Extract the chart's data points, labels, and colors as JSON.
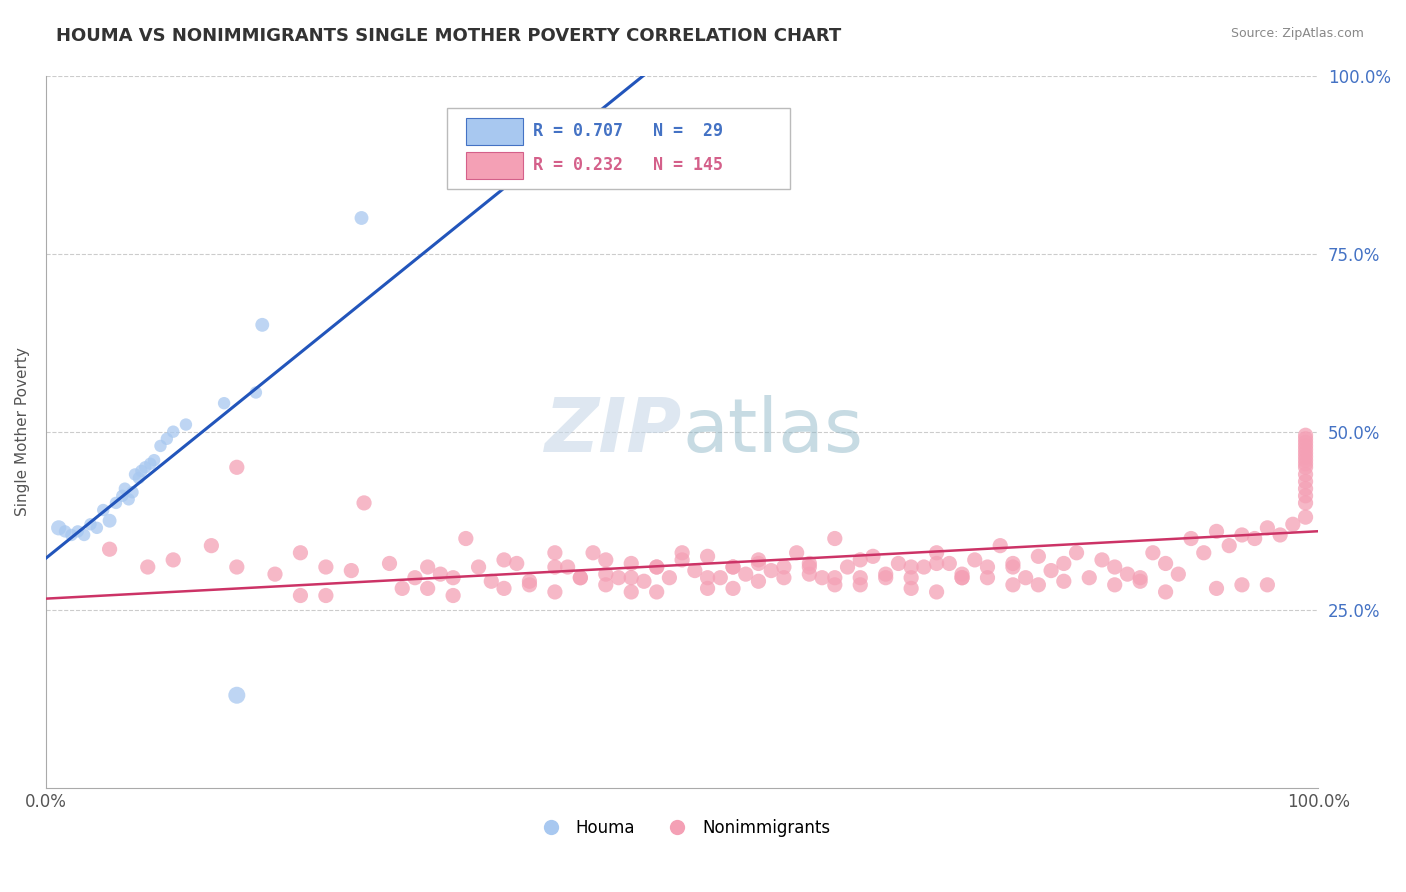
{
  "title": "HOUMA VS NONIMMIGRANTS SINGLE MOTHER POVERTY CORRELATION CHART",
  "source": "Source: ZipAtlas.com",
  "ylabel": "Single Mother Poverty",
  "houma_R": 0.707,
  "houma_N": 29,
  "nonimm_R": 0.232,
  "nonimm_N": 145,
  "houma_color": "#a8c8f0",
  "houma_edge_color": "#4472c4",
  "nonimm_color": "#f4a0b5",
  "nonimm_edge_color": "#d4608a",
  "houma_line_color": "#2255bb",
  "nonimm_line_color": "#cc3366",
  "background_color": "#ffffff",
  "grid_color": "#cccccc",
  "xlim": [
    0,
    1
  ],
  "ylim": [
    0,
    1
  ],
  "houma_x": [
    0.01,
    0.015,
    0.02,
    0.025,
    0.03,
    0.035,
    0.04,
    0.045,
    0.05,
    0.055,
    0.06,
    0.062,
    0.065,
    0.068,
    0.07,
    0.073,
    0.075,
    0.078,
    0.082,
    0.085,
    0.09,
    0.095,
    0.1,
    0.11,
    0.14,
    0.165,
    0.17,
    0.248,
    0.15
  ],
  "houma_y": [
    0.365,
    0.36,
    0.355,
    0.36,
    0.355,
    0.37,
    0.365,
    0.39,
    0.375,
    0.4,
    0.41,
    0.42,
    0.405,
    0.415,
    0.44,
    0.435,
    0.445,
    0.45,
    0.455,
    0.46,
    0.48,
    0.49,
    0.5,
    0.51,
    0.54,
    0.555,
    0.65,
    0.8,
    0.13
  ],
  "houma_sizes": [
    120,
    80,
    80,
    80,
    80,
    80,
    80,
    80,
    100,
    80,
    80,
    80,
    80,
    80,
    80,
    80,
    80,
    80,
    80,
    80,
    80,
    80,
    80,
    80,
    80,
    80,
    100,
    100,
    150
  ],
  "nonimm_x": [
    0.05,
    0.08,
    0.1,
    0.13,
    0.15,
    0.18,
    0.2,
    0.22,
    0.24,
    0.27,
    0.29,
    0.3,
    0.31,
    0.32,
    0.33,
    0.34,
    0.35,
    0.36,
    0.37,
    0.38,
    0.4,
    0.41,
    0.42,
    0.43,
    0.44,
    0.45,
    0.46,
    0.47,
    0.48,
    0.49,
    0.5,
    0.51,
    0.52,
    0.53,
    0.54,
    0.55,
    0.56,
    0.57,
    0.58,
    0.59,
    0.6,
    0.61,
    0.62,
    0.63,
    0.64,
    0.65,
    0.66,
    0.67,
    0.68,
    0.69,
    0.7,
    0.71,
    0.72,
    0.73,
    0.74,
    0.75,
    0.76,
    0.77,
    0.78,
    0.79,
    0.8,
    0.81,
    0.82,
    0.83,
    0.84,
    0.85,
    0.86,
    0.87,
    0.88,
    0.89,
    0.9,
    0.91,
    0.92,
    0.93,
    0.94,
    0.95,
    0.96,
    0.97,
    0.98,
    0.99,
    0.2,
    0.25,
    0.28,
    0.32,
    0.36,
    0.4,
    0.44,
    0.48,
    0.52,
    0.56,
    0.6,
    0.64,
    0.68,
    0.72,
    0.76,
    0.8,
    0.84,
    0.88,
    0.92,
    0.96,
    0.15,
    0.22,
    0.3,
    0.38,
    0.46,
    0.54,
    0.62,
    0.7,
    0.78,
    0.86,
    0.94,
    0.99,
    0.99,
    0.99,
    0.99,
    0.99,
    0.99,
    0.99,
    0.99,
    0.99,
    0.99,
    0.99,
    0.99,
    0.99,
    0.99,
    0.99,
    0.4,
    0.42,
    0.44,
    0.46,
    0.48,
    0.5,
    0.52,
    0.54,
    0.56,
    0.58,
    0.6,
    0.62,
    0.64,
    0.66,
    0.68,
    0.7,
    0.72,
    0.74,
    0.76
  ],
  "nonimm_y": [
    0.335,
    0.31,
    0.32,
    0.34,
    0.31,
    0.3,
    0.33,
    0.31,
    0.305,
    0.315,
    0.295,
    0.31,
    0.3,
    0.295,
    0.35,
    0.31,
    0.29,
    0.32,
    0.315,
    0.29,
    0.33,
    0.31,
    0.295,
    0.33,
    0.3,
    0.295,
    0.315,
    0.29,
    0.31,
    0.295,
    0.32,
    0.305,
    0.325,
    0.295,
    0.31,
    0.3,
    0.32,
    0.305,
    0.31,
    0.33,
    0.315,
    0.295,
    0.35,
    0.31,
    0.295,
    0.325,
    0.3,
    0.315,
    0.295,
    0.31,
    0.33,
    0.315,
    0.3,
    0.32,
    0.295,
    0.34,
    0.31,
    0.295,
    0.325,
    0.305,
    0.315,
    0.33,
    0.295,
    0.32,
    0.31,
    0.3,
    0.295,
    0.33,
    0.315,
    0.3,
    0.35,
    0.33,
    0.36,
    0.34,
    0.355,
    0.35,
    0.365,
    0.355,
    0.37,
    0.38,
    0.27,
    0.4,
    0.28,
    0.27,
    0.28,
    0.275,
    0.285,
    0.275,
    0.28,
    0.29,
    0.3,
    0.285,
    0.28,
    0.295,
    0.285,
    0.29,
    0.285,
    0.275,
    0.28,
    0.285,
    0.45,
    0.27,
    0.28,
    0.285,
    0.275,
    0.28,
    0.285,
    0.275,
    0.285,
    0.29,
    0.285,
    0.4,
    0.41,
    0.42,
    0.43,
    0.44,
    0.45,
    0.455,
    0.46,
    0.465,
    0.47,
    0.475,
    0.48,
    0.485,
    0.49,
    0.495,
    0.31,
    0.295,
    0.32,
    0.295,
    0.31,
    0.33,
    0.295,
    0.31,
    0.315,
    0.295,
    0.31,
    0.295,
    0.32,
    0.295,
    0.31,
    0.315,
    0.295,
    0.31,
    0.315
  ]
}
